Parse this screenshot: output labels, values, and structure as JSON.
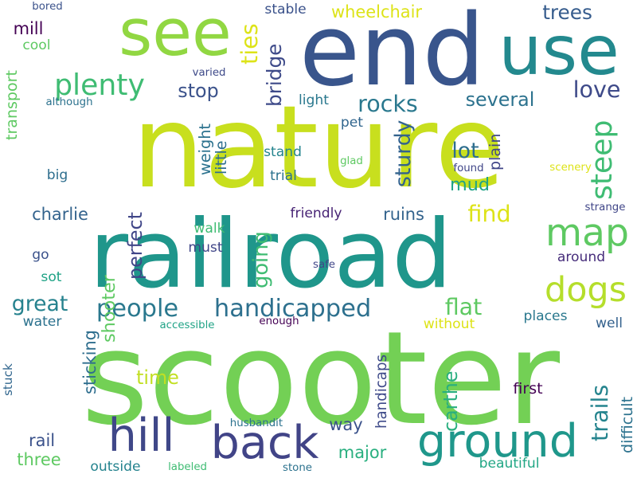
{
  "words": [
    {
      "text": "nature",
      "color": "#c8df1e",
      "vertical": false
    },
    {
      "text": "scooter",
      "color": "#73d055",
      "vertical": false
    },
    {
      "text": "railroad",
      "color": "#1f968b",
      "vertical": false
    },
    {
      "text": "end",
      "color": "#39558c",
      "vertical": false
    },
    {
      "text": "see",
      "color": "#91d742",
      "vertical": false
    },
    {
      "text": "use",
      "color": "#23898e",
      "vertical": false
    },
    {
      "text": "ground",
      "color": "#1f978b",
      "vertical": false
    },
    {
      "text": "back",
      "color": "#414487",
      "vertical": false
    },
    {
      "text": "hill",
      "color": "#3f4788",
      "vertical": false
    },
    {
      "text": "map",
      "color": "#5ec962",
      "vertical": false
    },
    {
      "text": "plenty",
      "color": "#3fbc73",
      "vertical": false
    },
    {
      "text": "dogs",
      "color": "#b5de2b",
      "vertical": false
    },
    {
      "text": "handicapped",
      "color": "#2d708e",
      "vertical": false
    },
    {
      "text": "people",
      "color": "#2a788e",
      "vertical": false
    },
    {
      "text": "rocks",
      "color": "#2a788e",
      "vertical": false
    },
    {
      "text": "trees",
      "color": "#365c8d",
      "vertical": false
    },
    {
      "text": "love",
      "color": "#3e4a89",
      "vertical": false
    },
    {
      "text": "several",
      "color": "#2c728e",
      "vertical": false
    },
    {
      "text": "find",
      "color": "#dde318",
      "vertical": false
    },
    {
      "text": "flat",
      "color": "#5ec962",
      "vertical": false
    },
    {
      "text": "lot",
      "color": "#2e6e8e",
      "vertical": false
    },
    {
      "text": "mud",
      "color": "#20a386",
      "vertical": false
    },
    {
      "text": "ruins",
      "color": "#33638d",
      "vertical": false
    },
    {
      "text": "charlie",
      "color": "#33638d",
      "vertical": false
    },
    {
      "text": "great",
      "color": "#26828e",
      "vertical": false
    },
    {
      "text": "stop",
      "color": "#3b528b",
      "vertical": false
    },
    {
      "text": "mill",
      "color": "#440154",
      "vertical": false
    },
    {
      "text": "wheelchair",
      "color": "#dde318",
      "vertical": false
    },
    {
      "text": "way",
      "color": "#3b528b",
      "vertical": false
    },
    {
      "text": "major",
      "color": "#29af7f",
      "vertical": false
    },
    {
      "text": "time",
      "color": "#c2df23",
      "vertical": false
    },
    {
      "text": "rail",
      "color": "#3b528b",
      "vertical": false
    },
    {
      "text": "three",
      "color": "#5ec962",
      "vertical": false
    },
    {
      "text": "first",
      "color": "#440154",
      "vertical": false
    },
    {
      "text": "friendly",
      "color": "#482475",
      "vertical": false
    },
    {
      "text": "around",
      "color": "#472d7b",
      "vertical": false
    },
    {
      "text": "places",
      "color": "#2a788e",
      "vertical": false
    },
    {
      "text": "beautiful",
      "color": "#22a785",
      "vertical": false
    },
    {
      "text": "without",
      "color": "#dde318",
      "vertical": false
    },
    {
      "text": "outside",
      "color": "#25838e",
      "vertical": false
    },
    {
      "text": "water",
      "color": "#2c728e",
      "vertical": false
    },
    {
      "text": "well",
      "color": "#34618d",
      "vertical": false
    },
    {
      "text": "walk",
      "color": "#3fbc73",
      "vertical": false
    },
    {
      "text": "must",
      "color": "#404688",
      "vertical": false
    },
    {
      "text": "stand",
      "color": "#25848e",
      "vertical": false
    },
    {
      "text": "trial",
      "color": "#2c728e",
      "vertical": false
    },
    {
      "text": "light",
      "color": "#2a788e",
      "vertical": false
    },
    {
      "text": "pet",
      "color": "#31668e",
      "vertical": false
    },
    {
      "text": "big",
      "color": "#2e6e8e",
      "vertical": false
    },
    {
      "text": "go",
      "color": "#3b528b",
      "vertical": false
    },
    {
      "text": "sot",
      "color": "#20a386",
      "vertical": false
    },
    {
      "text": "cool",
      "color": "#5ec962",
      "vertical": false
    },
    {
      "text": "stable",
      "color": "#3b528b",
      "vertical": false
    },
    {
      "text": "bored",
      "color": "#3b528b",
      "vertical": false
    },
    {
      "text": "varied",
      "color": "#3e4a89",
      "vertical": false
    },
    {
      "text": "although",
      "color": "#2c728e",
      "vertical": false
    },
    {
      "text": "glad",
      "color": "#5ec962",
      "vertical": false
    },
    {
      "text": "found",
      "color": "#404688",
      "vertical": false
    },
    {
      "text": "scenery",
      "color": "#dde318",
      "vertical": false
    },
    {
      "text": "strange",
      "color": "#404688",
      "vertical": false
    },
    {
      "text": "safe",
      "color": "#404688",
      "vertical": false
    },
    {
      "text": "enough",
      "color": "#440154",
      "vertical": false
    },
    {
      "text": "accessible",
      "color": "#20a386",
      "vertical": false
    },
    {
      "text": "husbandit",
      "color": "#2c728e",
      "vertical": false
    },
    {
      "text": "labeled",
      "color": "#3fbc73",
      "vertical": false
    },
    {
      "text": "stone",
      "color": "#2c728e",
      "vertical": false
    },
    {
      "text": "trails",
      "color": "#25848e",
      "vertical": true
    },
    {
      "text": "steep",
      "color": "#3fbc73",
      "vertical": true
    },
    {
      "text": "going",
      "color": "#3fbc73",
      "vertical": true
    },
    {
      "text": "bridge",
      "color": "#3e4a89",
      "vertical": true
    },
    {
      "text": "ties",
      "color": "#dde318",
      "vertical": true
    },
    {
      "text": "sturdy",
      "color": "#33638d",
      "vertical": true
    },
    {
      "text": "perfect",
      "color": "#404688",
      "vertical": true
    },
    {
      "text": "weight",
      "color": "#2c728e",
      "vertical": true
    },
    {
      "text": "shooter",
      "color": "#5ec962",
      "vertical": true
    },
    {
      "text": "transport",
      "color": "#5ec962",
      "vertical": true
    },
    {
      "text": "little",
      "color": "#2e6e8e",
      "vertical": true
    },
    {
      "text": "sticking",
      "color": "#2e6e8e",
      "vertical": true
    },
    {
      "text": "carthe",
      "color": "#29af7f",
      "vertical": true
    },
    {
      "text": "difficult",
      "color": "#2c728e",
      "vertical": true
    },
    {
      "text": "plain",
      "color": "#404688",
      "vertical": true
    },
    {
      "text": "handicaps",
      "color": "#3e4a89",
      "vertical": true
    },
    {
      "text": "stuck",
      "color": "#31668e",
      "vertical": true
    }
  ]
}
